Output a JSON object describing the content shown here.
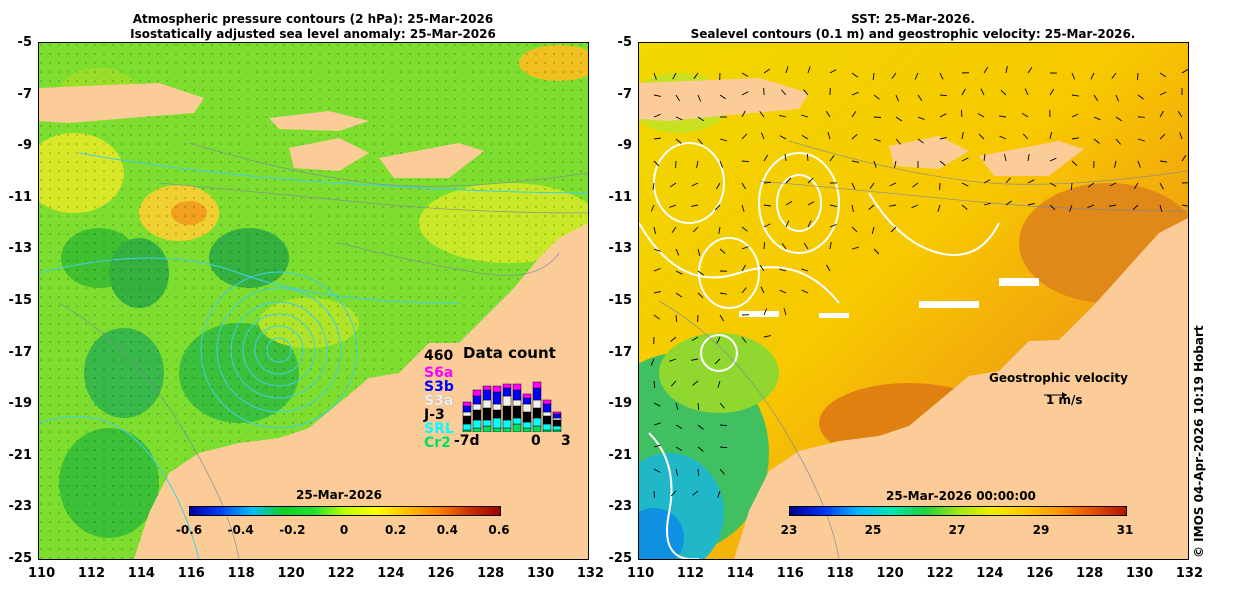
{
  "left_panel": {
    "title_line1": "Atmospheric pressure contours (2 hPa): 25-Mar-2026",
    "title_line2": "Isostatically adjusted sea level anomaly: 25-Mar-2026",
    "colorbar_title": "25-Mar-2026",
    "colorbar_labels": [
      "-0.6",
      "-0.4",
      "-0.2",
      "0",
      "0.2",
      "0.4",
      "0.6"
    ],
    "colorbar_colors": [
      "#0000a0",
      "#0040ff",
      "#00c0ff",
      "#10d020",
      "#20e030",
      "#c0ff00",
      "#ffff00",
      "#ffc000",
      "#ff8000",
      "#d03000",
      "#a00000"
    ],
    "data_count": {
      "max_label": "460",
      "title": "Data count",
      "missions": [
        {
          "name": "S6a",
          "color": "#ff00ff"
        },
        {
          "name": "S3b",
          "color": "#0000ff"
        },
        {
          "name": "S3a",
          "color": "#f0f0f0"
        },
        {
          "name": "J-3",
          "color": "#000000"
        },
        {
          "name": "SRL",
          "color": "#00ffff"
        },
        {
          "name": "Cr2",
          "color": "#00e060"
        }
      ],
      "x_start": "-7d",
      "x_zero": "0",
      "x_end": "3"
    }
  },
  "right_panel": {
    "title_line1": "SST: 25-Mar-2026.",
    "title_line2": "Sealevel contours (0.1 m) and geostrophic velocity: 25-Mar-2026.",
    "colorbar_title": "25-Mar-2026 00:00:00",
    "colorbar_labels": [
      "23",
      "25",
      "27",
      "29",
      "31"
    ],
    "colorbar_colors": [
      "#00008c",
      "#0030ff",
      "#00b4ff",
      "#00e6b4",
      "#1ed23c",
      "#a0e614",
      "#f0f000",
      "#ffc800",
      "#ff9600",
      "#e65000",
      "#b41400"
    ],
    "velocity_legend_title": "Geostrophic velocity",
    "velocity_legend_value": "1 m/s"
  },
  "axes": {
    "x_labels": [
      "110",
      "112",
      "114",
      "116",
      "118",
      "120",
      "122",
      "124",
      "126",
      "128",
      "130",
      "132"
    ],
    "y_labels": [
      "-5",
      "-7",
      "-9",
      "-11",
      "-13",
      "-15",
      "-17",
      "-19",
      "-21",
      "-23",
      "-25"
    ]
  },
  "copyright": "© IMOS 04-Apr-2026 10:19 Hobart",
  "colors": {
    "land": "#fccc98",
    "contour_cyan": "#40d0e0",
    "contour_white": "#ffffff"
  }
}
